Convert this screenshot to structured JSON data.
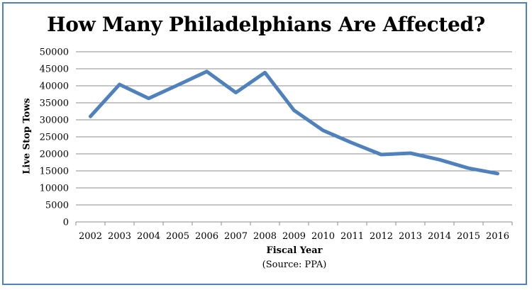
{
  "chart_data": {
    "type": "line",
    "title": "How Many Philadelphians Are Affected?",
    "xlabel": "Fiscal Year",
    "ylabel": "Live Stop Tows",
    "source": "(Source: PPA)",
    "ylim": [
      0,
      50000
    ],
    "ytick_step": 5000,
    "yticks": [
      "0",
      "5000",
      "10000",
      "15000",
      "20000",
      "25000",
      "30000",
      "35000",
      "40000",
      "45000",
      "50000"
    ],
    "grid": true,
    "legend": "none",
    "categories": [
      "2002",
      "2003",
      "2004",
      "2005",
      "2006",
      "2007",
      "2008",
      "2009",
      "2010",
      "2011",
      "2012",
      "2013",
      "2014",
      "2015",
      "2016"
    ],
    "series": [
      {
        "color": "#4f81bd",
        "values": [
          31000,
          40400,
          36300,
          40200,
          44200,
          38000,
          43900,
          32800,
          26900,
          23200,
          19800,
          20200,
          18300,
          15800,
          14200
        ]
      }
    ]
  }
}
